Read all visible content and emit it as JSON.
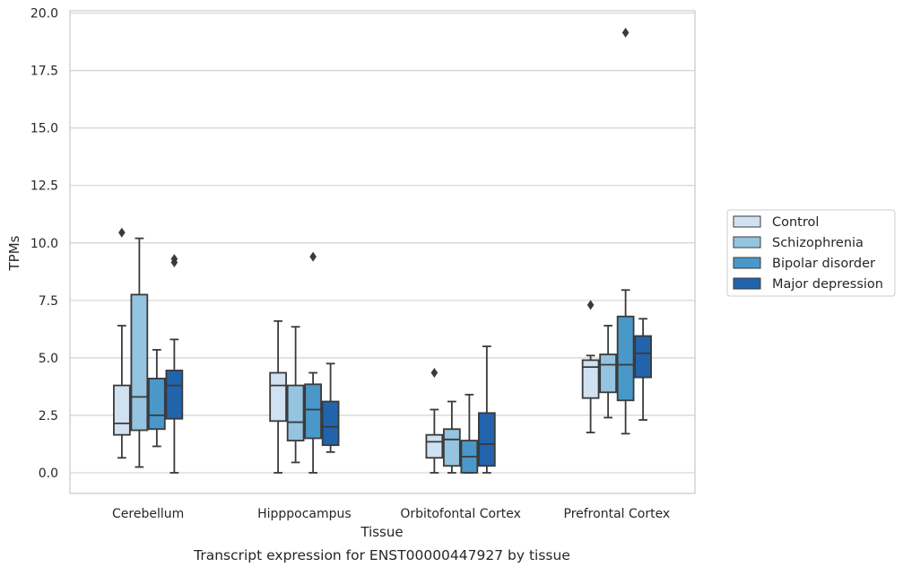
{
  "caption": "Transcript expression for ENST00000447927 by tissue",
  "chart_data": {
    "type": "box",
    "xlabel": "Tissue",
    "ylabel": "TPMs",
    "ylim": [
      -0.9,
      20.1
    ],
    "yticks": [
      0.0,
      2.5,
      5.0,
      7.5,
      10.0,
      12.5,
      15.0,
      17.5,
      20.0
    ],
    "ytick_labels": [
      "0.0",
      "2.5",
      "5.0",
      "7.5",
      "10.0",
      "12.5",
      "15.0",
      "17.5",
      "20.0"
    ],
    "grid": "horizontal",
    "legend_position": "right",
    "categories": [
      "Cerebellum",
      "Hipppocampus",
      "Orbitofontal Cortex",
      "Prefrontal Cortex"
    ],
    "series": [
      {
        "name": "Control",
        "color": "#d0e1f2",
        "boxes": [
          {
            "min": 0.65,
            "q1": 1.65,
            "median": 2.15,
            "q3": 3.8,
            "max": 6.4,
            "outliers": [
              10.45
            ]
          },
          {
            "min": 0.0,
            "q1": 2.25,
            "median": 3.8,
            "q3": 4.35,
            "max": 6.6,
            "outliers": []
          },
          {
            "min": 0.0,
            "q1": 0.65,
            "median": 1.35,
            "q3": 1.65,
            "max": 2.75,
            "outliers": [
              4.35
            ]
          },
          {
            "min": 1.75,
            "q1": 3.25,
            "median": 4.6,
            "q3": 4.9,
            "max": 5.1,
            "outliers": [
              7.3
            ]
          }
        ]
      },
      {
        "name": "Schizophrenia",
        "color": "#94c4df",
        "boxes": [
          {
            "min": 0.25,
            "q1": 1.85,
            "median": 3.3,
            "q3": 7.75,
            "max": 10.2,
            "outliers": []
          },
          {
            "min": 0.45,
            "q1": 1.4,
            "median": 2.2,
            "q3": 3.8,
            "max": 6.35,
            "outliers": []
          },
          {
            "min": 0.0,
            "q1": 0.3,
            "median": 1.45,
            "q3": 1.9,
            "max": 3.1,
            "outliers": []
          },
          {
            "min": 2.4,
            "q1": 3.5,
            "median": 4.7,
            "q3": 5.15,
            "max": 6.4,
            "outliers": []
          }
        ]
      },
      {
        "name": "Bipolar disorder",
        "color": "#4a98c9",
        "boxes": [
          {
            "min": 1.15,
            "q1": 1.9,
            "median": 2.5,
            "q3": 4.1,
            "max": 5.35,
            "outliers": []
          },
          {
            "min": 0.0,
            "q1": 1.5,
            "median": 2.75,
            "q3": 3.85,
            "max": 4.35,
            "outliers": [
              9.4
            ]
          },
          {
            "min": 0.0,
            "q1": 0.0,
            "median": 0.7,
            "q3": 1.4,
            "max": 3.4,
            "outliers": []
          },
          {
            "min": 1.7,
            "q1": 3.15,
            "median": 4.7,
            "q3": 6.8,
            "max": 7.95,
            "outliers": [
              19.15
            ]
          }
        ]
      },
      {
        "name": "Major depression",
        "color": "#2164ab",
        "boxes": [
          {
            "min": 0.0,
            "q1": 2.35,
            "median": 3.8,
            "q3": 4.45,
            "max": 5.8,
            "outliers": [
              9.15,
              9.3
            ]
          },
          {
            "min": 0.9,
            "q1": 1.2,
            "median": 2.0,
            "q3": 3.1,
            "max": 4.75,
            "outliers": []
          },
          {
            "min": 0.0,
            "q1": 0.3,
            "median": 1.25,
            "q3": 2.6,
            "max": 5.5,
            "outliers": []
          },
          {
            "min": 2.3,
            "q1": 4.15,
            "median": 5.2,
            "q3": 5.95,
            "max": 6.7,
            "outliers": []
          }
        ]
      }
    ]
  }
}
